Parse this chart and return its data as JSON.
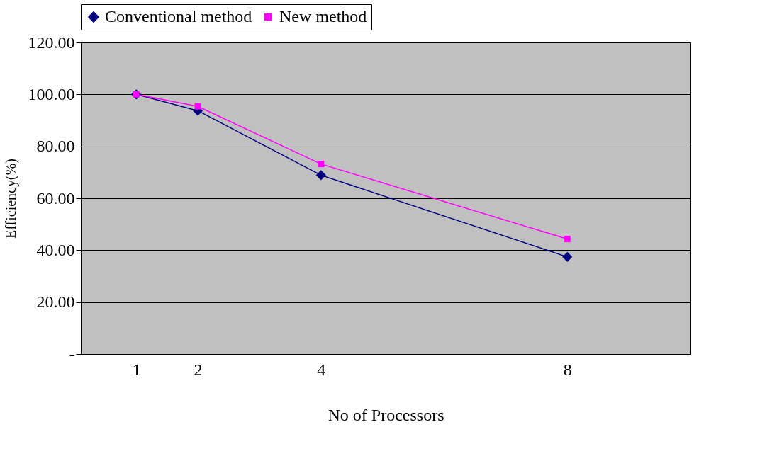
{
  "chart_data": {
    "type": "line",
    "xlabel": "No of Processors",
    "ylabel": "Efficiency(%)",
    "x": [
      1,
      2,
      4,
      8
    ],
    "series": [
      {
        "name": "Conventional method",
        "color": "#000080",
        "marker": "diamond",
        "values": [
          100,
          93.7,
          68.9,
          37.4
        ]
      },
      {
        "name": "New method",
        "color": "#ff00ff",
        "marker": "square",
        "values": [
          100,
          95.4,
          73.2,
          44.3
        ]
      }
    ],
    "xlim": [
      0.1,
      10
    ],
    "xticks": [
      1,
      2,
      4,
      8
    ],
    "ylim": [
      0,
      120
    ],
    "yticks": [
      {
        "value": 0,
        "label": "-"
      },
      {
        "value": 20,
        "label": "20.00"
      },
      {
        "value": 40,
        "label": "40.00"
      },
      {
        "value": 60,
        "label": "60.00"
      },
      {
        "value": 80,
        "label": "80.00"
      },
      {
        "value": 100,
        "label": "100.00"
      },
      {
        "value": 120,
        "label": "120.00"
      }
    ],
    "grid": "y",
    "legend": "top",
    "line_style": "solid"
  }
}
